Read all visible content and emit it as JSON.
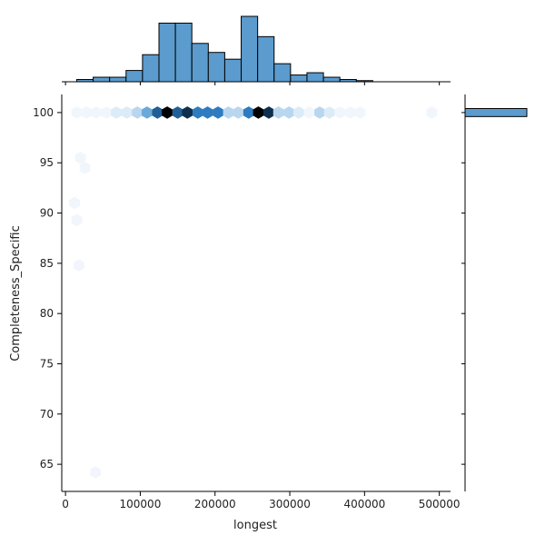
{
  "chart_data": {
    "type": "hexbin-joint",
    "xlabel": "longest",
    "ylabel": "Completeness_Specific",
    "x_ticks": [
      0,
      100000,
      200000,
      300000,
      400000,
      500000
    ],
    "x_tick_labels": [
      "0",
      "100000",
      "200000",
      "300000",
      "400000",
      "500000"
    ],
    "y_ticks": [
      65,
      70,
      75,
      80,
      85,
      90,
      95,
      100
    ],
    "y_tick_labels": [
      "65",
      "70",
      "75",
      "80",
      "85",
      "90",
      "95",
      "100"
    ],
    "xlim": [
      -5000,
      515000
    ],
    "ylim": [
      62.3,
      101.8
    ],
    "colors": {
      "bar_fill": "#5b9bcd",
      "hex_scale": [
        "#f1f6fc",
        "#dcebf8",
        "#b9d6ef",
        "#6aaad9",
        "#2d7cc0",
        "#1f5f96",
        "#0f2f4f",
        "#000000"
      ]
    },
    "hexbins": [
      {
        "x": 15000,
        "y": 100,
        "level": 0.04
      },
      {
        "x": 28000,
        "y": 100,
        "level": 0.08
      },
      {
        "x": 41000,
        "y": 100,
        "level": 0.12
      },
      {
        "x": 55000,
        "y": 100,
        "level": 0.14
      },
      {
        "x": 68000,
        "y": 100,
        "level": 0.18
      },
      {
        "x": 82000,
        "y": 100,
        "level": 0.22
      },
      {
        "x": 96000,
        "y": 100,
        "level": 0.3
      },
      {
        "x": 109000,
        "y": 100,
        "level": 0.45
      },
      {
        "x": 123000,
        "y": 100,
        "level": 0.72
      },
      {
        "x": 136000,
        "y": 100,
        "level": 1.0
      },
      {
        "x": 150000,
        "y": 100,
        "level": 0.85
      },
      {
        "x": 163000,
        "y": 100,
        "level": 0.88
      },
      {
        "x": 177000,
        "y": 100,
        "level": 0.7
      },
      {
        "x": 190000,
        "y": 100,
        "level": 0.64
      },
      {
        "x": 204000,
        "y": 100,
        "level": 0.6
      },
      {
        "x": 218000,
        "y": 100,
        "level": 0.32
      },
      {
        "x": 231000,
        "y": 100,
        "level": 0.38
      },
      {
        "x": 245000,
        "y": 100,
        "level": 0.62
      },
      {
        "x": 258000,
        "y": 100,
        "level": 1.0
      },
      {
        "x": 272000,
        "y": 100,
        "level": 0.9
      },
      {
        "x": 285000,
        "y": 100,
        "level": 0.35
      },
      {
        "x": 299000,
        "y": 100,
        "level": 0.4
      },
      {
        "x": 312000,
        "y": 100,
        "level": 0.2
      },
      {
        "x": 326000,
        "y": 100,
        "level": 0.14
      },
      {
        "x": 340000,
        "y": 100,
        "level": 0.3
      },
      {
        "x": 353000,
        "y": 100,
        "level": 0.16
      },
      {
        "x": 367000,
        "y": 100,
        "level": 0.05
      },
      {
        "x": 381000,
        "y": 100,
        "level": 0.04
      },
      {
        "x": 394000,
        "y": 100,
        "level": 0.05
      },
      {
        "x": 490000,
        "y": 100,
        "level": 0.03
      },
      {
        "x": 20000,
        "y": 95.5,
        "level": 0.03
      },
      {
        "x": 26000,
        "y": 94.5,
        "level": 0.03
      },
      {
        "x": 12000,
        "y": 91,
        "level": 0.03
      },
      {
        "x": 15000,
        "y": 89.3,
        "level": 0.05
      },
      {
        "x": 18000,
        "y": 84.8,
        "level": 0.03
      },
      {
        "x": 40000,
        "y": 64.2,
        "level": 0.03
      }
    ],
    "x_hist": {
      "bin_edges": [
        15000,
        37000,
        59000,
        81000,
        103000,
        125000,
        147000,
        169000,
        191000,
        213000,
        235000,
        257000,
        279000,
        301000,
        323000,
        345000,
        367000,
        389000,
        411000,
        433000,
        455000,
        477000,
        499000
      ],
      "counts": [
        1,
        2,
        2,
        5,
        12,
        26,
        26,
        17,
        13,
        10,
        29,
        20,
        8,
        3,
        4,
        2,
        1,
        0.5,
        0,
        0,
        0,
        0
      ]
    },
    "y_hist": {
      "bins": [
        {
          "y_low": 99.6,
          "y_high": 100.4,
          "count": 1
        }
      ]
    }
  }
}
